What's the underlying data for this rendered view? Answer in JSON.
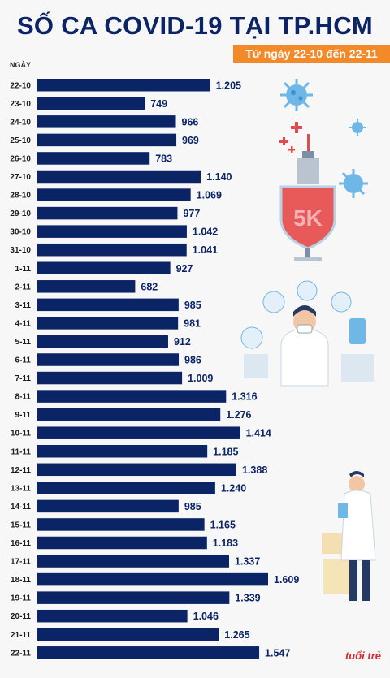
{
  "header": {
    "title": "SỐ CA COVID-19 TẠI TP.HCM",
    "subtitle": "Từ ngày 22-10 đến 22-11",
    "y_axis_label": "NGÀY"
  },
  "brand": {
    "logo_text": "tuổi trẻ"
  },
  "colors": {
    "bar": "#0b2466",
    "accent": "#f28a2a",
    "brand": "#d9262e"
  },
  "illustrations": [
    "syringe-5k-shield-icon",
    "virus-icon",
    "doctor-with-mask-icon",
    "doctor-with-clipboard-icon"
  ],
  "chart_data": {
    "type": "bar",
    "orientation": "horizontal",
    "categories": [
      "22-10",
      "23-10",
      "24-10",
      "25-10",
      "26-10",
      "27-10",
      "28-10",
      "29-10",
      "30-10",
      "31-10",
      "1-11",
      "2-11",
      "3-11",
      "4-11",
      "5-11",
      "6-11",
      "7-11",
      "8-11",
      "9-11",
      "10-11",
      "11-11",
      "12-11",
      "13-11",
      "14-11",
      "15-11",
      "16-11",
      "17-11",
      "18-11",
      "19-11",
      "20-11",
      "21-11",
      "22-11"
    ],
    "values": [
      1205,
      749,
      966,
      969,
      783,
      1140,
      1069,
      977,
      1042,
      1041,
      927,
      682,
      985,
      981,
      912,
      986,
      1009,
      1316,
      1276,
      1414,
      1185,
      1388,
      1240,
      985,
      1165,
      1183,
      1337,
      1609,
      1339,
      1046,
      1265,
      1547
    ],
    "value_labels": [
      "1.205",
      "749",
      "966",
      "969",
      "783",
      "1.140",
      "1.069",
      "977",
      "1.042",
      "1.041",
      "927",
      "682",
      "985",
      "981",
      "912",
      "986",
      "1.009",
      "1.316",
      "1.276",
      "1.414",
      "1.185",
      "1.388",
      "1.240",
      "985",
      "1.165",
      "1.183",
      "1.337",
      "1.609",
      "1.339",
      "1.046",
      "1.265",
      "1.547"
    ],
    "title": "SỐ CA COVID-19 TẠI TP.HCM",
    "subtitle": "Từ ngày 22-10 đến 22-11",
    "ylabel": "NGÀY",
    "xlabel": "",
    "grid": false,
    "legend": "none"
  }
}
